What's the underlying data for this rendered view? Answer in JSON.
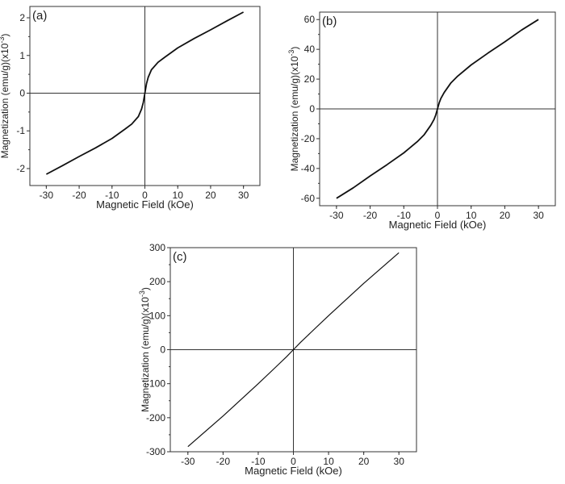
{
  "figure": {
    "background": "#ffffff",
    "line_color": "#111111"
  },
  "chart_data": [
    {
      "id": "a",
      "type": "line",
      "panel_label": "(a)",
      "xlabel": "Magnetic Field (kOe)",
      "ylabel": "Magnetization (emu/g)(x10",
      "ylabel_exp": "-3",
      "ylabel_close": ")",
      "xlim": [
        -35,
        35
      ],
      "ylim": [
        -2.45,
        2.3
      ],
      "xticks": [
        -30,
        -20,
        -10,
        0,
        10,
        20,
        30
      ],
      "yticks": [
        -2,
        -1,
        0,
        1,
        2
      ],
      "zero_lines": true,
      "series": [
        {
          "x": [
            -30,
            -25,
            -20,
            -15,
            -10,
            -6,
            -4,
            -2,
            -1,
            -0.5,
            0,
            0.5,
            1,
            2,
            4,
            6,
            10,
            15,
            20,
            25,
            30
          ],
          "y": [
            -2.15,
            -1.92,
            -1.68,
            -1.45,
            -1.2,
            -0.95,
            -0.82,
            -0.62,
            -0.42,
            -0.25,
            0,
            0.25,
            0.42,
            0.62,
            0.82,
            0.95,
            1.2,
            1.45,
            1.68,
            1.92,
            2.15
          ]
        }
      ]
    },
    {
      "id": "b",
      "type": "line",
      "panel_label": "(b)",
      "xlabel": "Magnetic Field (kOe)",
      "ylabel": "Magnetization (emu/g)(x10",
      "ylabel_exp": "-3",
      "ylabel_close": ")",
      "xlim": [
        -35,
        35
      ],
      "ylim": [
        -65,
        65
      ],
      "xticks": [
        -30,
        -20,
        -10,
        0,
        10,
        20,
        30
      ],
      "yticks": [
        -60,
        -40,
        -20,
        0,
        20,
        40,
        60
      ],
      "zero_lines": true,
      "series": [
        {
          "x": [
            -30,
            -25,
            -20,
            -15,
            -10,
            -6,
            -4,
            -2,
            -1,
            -0.5,
            0,
            0.5,
            1,
            2,
            4,
            6,
            10,
            15,
            20,
            25,
            30
          ],
          "y": [
            -60,
            -53,
            -45,
            -37.5,
            -29.5,
            -22,
            -17.5,
            -11,
            -7,
            -4,
            0,
            4,
            7,
            11,
            17.5,
            22,
            29.5,
            37.5,
            45,
            53,
            60
          ]
        }
      ]
    },
    {
      "id": "c",
      "type": "line",
      "panel_label": "(c)",
      "xlabel": "Magnetic Field (kOe)",
      "ylabel": "Magnetization (emu/g)(x10",
      "ylabel_exp": "-3",
      "ylabel_close": ")",
      "xlim": [
        -35,
        35
      ],
      "ylim": [
        -300,
        300
      ],
      "xticks": [
        -30,
        -20,
        -10,
        0,
        10,
        20,
        30
      ],
      "yticks": [
        -300,
        -200,
        -100,
        0,
        100,
        200,
        300
      ],
      "zero_lines": true,
      "series": [
        {
          "x": [
            -30,
            -20,
            -10,
            -5,
            -2,
            0,
            2,
            5,
            10,
            20,
            30
          ],
          "y": [
            -285,
            -195,
            -100,
            -51,
            -21,
            0,
            21,
            51,
            100,
            195,
            285
          ]
        }
      ]
    }
  ]
}
